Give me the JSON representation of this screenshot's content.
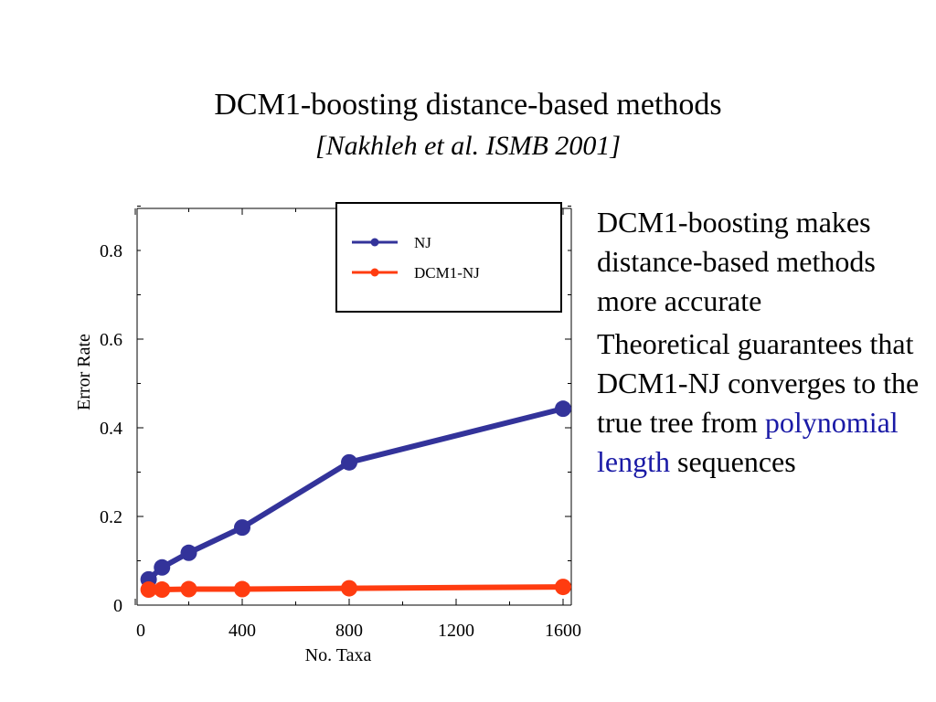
{
  "slide": {
    "title": "DCM1-boosting distance-based methods",
    "subtitle": "[Nakhleh et al. ISMB 2001]",
    "bullets": [
      {
        "text": "DCM1-boosting makes distance-based methods more accurate"
      },
      {
        "text_before": "Theoretical guarantees that DCM1-NJ converges to the true tree from",
        "highlight": "polynomial length",
        "text_after": "sequences"
      }
    ],
    "highlight_color": "#1a1aa6"
  },
  "chart_data": {
    "type": "line",
    "xlabel": "No. Taxa",
    "ylabel": "Error Rate",
    "xlim": [
      0,
      1600
    ],
    "ylim": [
      0,
      0.9
    ],
    "xticks": [
      "0",
      "400",
      "800",
      "1200",
      "1600"
    ],
    "xtick_values": [
      0,
      400,
      800,
      1200,
      1600
    ],
    "yticks": [
      "0",
      "0.2",
      "0.4",
      "0.6",
      "0.8"
    ],
    "ytick_values": [
      0,
      0.2,
      0.4,
      0.6,
      0.8
    ],
    "legend_position": "top-right",
    "series": [
      {
        "name": "NJ",
        "color": "#33339a",
        "x": [
          50,
          100,
          200,
          400,
          800,
          1600
        ],
        "y": [
          0.058,
          0.085,
          0.118,
          0.175,
          0.322,
          0.443
        ]
      },
      {
        "name": "DCM1-NJ",
        "color": "#ff3c10",
        "x": [
          50,
          100,
          200,
          400,
          800,
          1600
        ],
        "y": [
          0.035,
          0.035,
          0.036,
          0.036,
          0.038,
          0.041
        ]
      }
    ]
  }
}
